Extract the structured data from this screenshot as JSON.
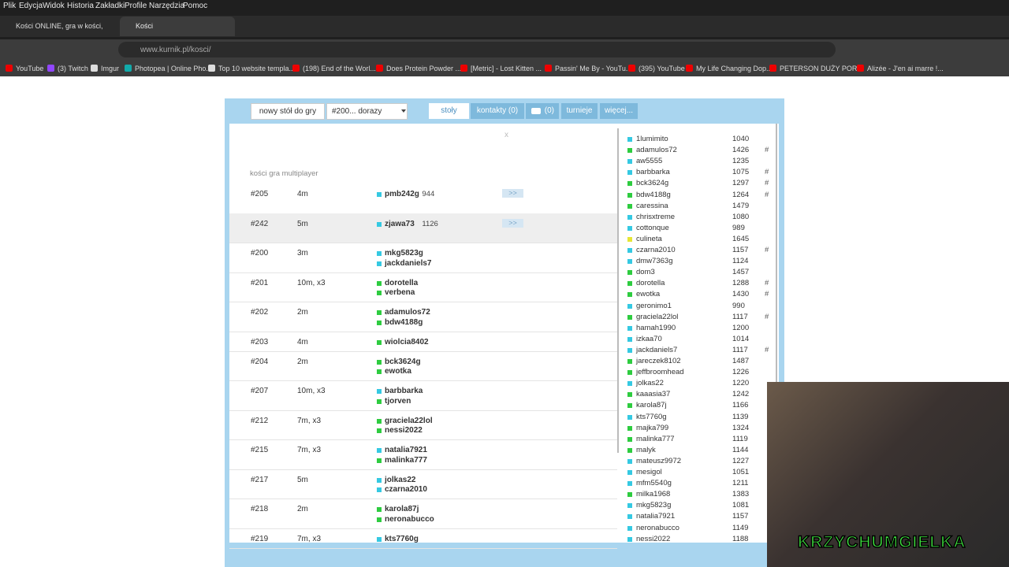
{
  "menu": [
    "Plik",
    "Edycja",
    "Widok",
    "Historia",
    "Zakładki",
    "Profile",
    "Narzędzia",
    "Pomoc"
  ],
  "tabs": [
    "Kości ONLINE, gra w kości, zagr",
    "Kości"
  ],
  "url": "www.kurnik.pl/kosci/",
  "bookmarks": [
    "YouTube",
    "(3) Twitch",
    "Imgur",
    "Photopea | Online Pho...",
    "Top 10 website templa...",
    "(198) End of the Worl...",
    "Does Protein Powder ...",
    "[Metric] - Lost Kitten ...",
    "Passin' Me By - YouTu...",
    "(395) YouTube",
    "My Life Changing Dop...",
    "PETERSON DUŻY POR...",
    "Alizée - J'en ai marre !..."
  ],
  "toolbar": {
    "new_table": "nowy stół do gry",
    "select": "#200... dorazy",
    "tabs": [
      "stoły",
      "kontakty (0)",
      "(0)",
      "turnieje",
      "więcej..."
    ]
  },
  "close": "x",
  "caption": "kości gra multiplayer",
  "tables": [
    {
      "id": "#205",
      "time": "4m",
      "players": [
        {
          "name": "pmb242g",
          "rating": 944,
          "color": "#35c9e2"
        }
      ],
      "join": ">>"
    },
    {
      "id": "#242",
      "time": "5m",
      "players": [
        {
          "name": "zjawa73",
          "rating": 1126,
          "color": "#35c9e2"
        }
      ],
      "join": ">>"
    },
    {
      "id": "#200",
      "time": "3m",
      "players": [
        {
          "name": "mkg5823g",
          "color": "#35c9e2"
        },
        {
          "name": "jackdaniels7",
          "color": "#35c9e2"
        }
      ]
    },
    {
      "id": "#201",
      "time": "10m, x3",
      "players": [
        {
          "name": "dorotella",
          "color": "#2ecc40"
        },
        {
          "name": "verbena",
          "color": "#2ecc40"
        }
      ]
    },
    {
      "id": "#202",
      "time": "2m",
      "players": [
        {
          "name": "adamulos72",
          "color": "#2ecc40"
        },
        {
          "name": "bdw4188g",
          "color": "#2ecc40"
        }
      ]
    },
    {
      "id": "#203",
      "time": "4m",
      "players": [
        {
          "name": "wiolcia8402",
          "color": "#2ecc40"
        }
      ]
    },
    {
      "id": "#204",
      "time": "2m",
      "players": [
        {
          "name": "bck3624g",
          "color": "#2ecc40"
        },
        {
          "name": "ewotka",
          "color": "#2ecc40"
        }
      ]
    },
    {
      "id": "#207",
      "time": "10m, x3",
      "players": [
        {
          "name": "barbbarka",
          "color": "#35c9e2"
        },
        {
          "name": "tjorven",
          "color": "#2ecc40"
        }
      ]
    },
    {
      "id": "#212",
      "time": "7m, x3",
      "players": [
        {
          "name": "graciela22lol",
          "color": "#2ecc40"
        },
        {
          "name": "nessi2022",
          "color": "#2ecc40"
        }
      ]
    },
    {
      "id": "#215",
      "time": "7m, x3",
      "players": [
        {
          "name": "natalia7921",
          "color": "#35c9e2"
        },
        {
          "name": "malinka777",
          "color": "#2ecc40"
        }
      ]
    },
    {
      "id": "#217",
      "time": "5m",
      "players": [
        {
          "name": "jolkas22",
          "color": "#35c9e2"
        },
        {
          "name": "czarna2010",
          "color": "#35c9e2"
        }
      ]
    },
    {
      "id": "#218",
      "time": "2m",
      "players": [
        {
          "name": "karola87j",
          "color": "#2ecc40"
        },
        {
          "name": "neronabucco",
          "color": "#2ecc40"
        }
      ]
    },
    {
      "id": "#219",
      "time": "7m, x3",
      "players": [
        {
          "name": "kts7760g",
          "color": "#35c9e2"
        }
      ]
    }
  ],
  "players": [
    {
      "name": "1lumimito",
      "rating": 1040,
      "color": "#35c9e2"
    },
    {
      "name": "adamulos72",
      "rating": 1426,
      "flag": "#",
      "color": "#2ecc40"
    },
    {
      "name": "aw5555",
      "rating": 1235,
      "color": "#35c9e2"
    },
    {
      "name": "barbbarka",
      "rating": 1075,
      "flag": "#",
      "color": "#35c9e2"
    },
    {
      "name": "bck3624g",
      "rating": 1297,
      "flag": "#",
      "color": "#2ecc40"
    },
    {
      "name": "bdw4188g",
      "rating": 1264,
      "flag": "#",
      "color": "#2ecc40"
    },
    {
      "name": "caressina",
      "rating": 1479,
      "color": "#2ecc40"
    },
    {
      "name": "chrisxtreme",
      "rating": 1080,
      "color": "#35c9e2"
    },
    {
      "name": "cottonque",
      "rating": 989,
      "color": "#35c9e2"
    },
    {
      "name": "culineta",
      "rating": 1645,
      "color": "#e6e635"
    },
    {
      "name": "czarna2010",
      "rating": 1157,
      "flag": "#",
      "color": "#35c9e2"
    },
    {
      "name": "dmw7363g",
      "rating": 1124,
      "color": "#35c9e2"
    },
    {
      "name": "dom3",
      "rating": 1457,
      "color": "#2ecc40"
    },
    {
      "name": "dorotella",
      "rating": 1288,
      "flag": "#",
      "color": "#2ecc40"
    },
    {
      "name": "ewotka",
      "rating": 1430,
      "flag": "#",
      "color": "#2ecc40"
    },
    {
      "name": "geronimo1",
      "rating": 990,
      "color": "#35c9e2"
    },
    {
      "name": "graciela22lol",
      "rating": 1117,
      "flag": "#",
      "color": "#2ecc40"
    },
    {
      "name": "hamah1990",
      "rating": 1200,
      "color": "#35c9e2"
    },
    {
      "name": "izkaa70",
      "rating": 1014,
      "color": "#35c9e2"
    },
    {
      "name": "jackdaniels7",
      "rating": 1117,
      "flag": "#",
      "color": "#35c9e2"
    },
    {
      "name": "jareczek8102",
      "rating": 1487,
      "color": "#2ecc40"
    },
    {
      "name": "jeffbroomhead",
      "rating": 1226,
      "color": "#2ecc40"
    },
    {
      "name": "jolkas22",
      "rating": 1220,
      "color": "#35c9e2"
    },
    {
      "name": "kaaasia37",
      "rating": 1242,
      "color": "#2ecc40"
    },
    {
      "name": "karola87j",
      "rating": 1166,
      "color": "#2ecc40"
    },
    {
      "name": "kts7760g",
      "rating": 1139,
      "color": "#35c9e2"
    },
    {
      "name": "majka799",
      "rating": 1324,
      "color": "#2ecc40"
    },
    {
      "name": "malinka777",
      "rating": 1119,
      "color": "#2ecc40"
    },
    {
      "name": "malyk",
      "rating": 1144,
      "color": "#2ecc40"
    },
    {
      "name": "mateusz9972",
      "rating": 1227,
      "color": "#35c9e2"
    },
    {
      "name": "mesigol",
      "rating": 1051,
      "color": "#35c9e2"
    },
    {
      "name": "mfm5540g",
      "rating": 1211,
      "color": "#35c9e2"
    },
    {
      "name": "milka1968",
      "rating": 1383,
      "color": "#2ecc40"
    },
    {
      "name": "mkg5823g",
      "rating": 1081,
      "color": "#35c9e2"
    },
    {
      "name": "natalia7921",
      "rating": 1157,
      "color": "#35c9e2"
    },
    {
      "name": "neronabucco",
      "rating": 1149,
      "color": "#35c9e2"
    },
    {
      "name": "nessi2022",
      "rating": 1188,
      "color": "#35c9e2"
    }
  ],
  "overlay": "KRZYCHUMGIELKA"
}
